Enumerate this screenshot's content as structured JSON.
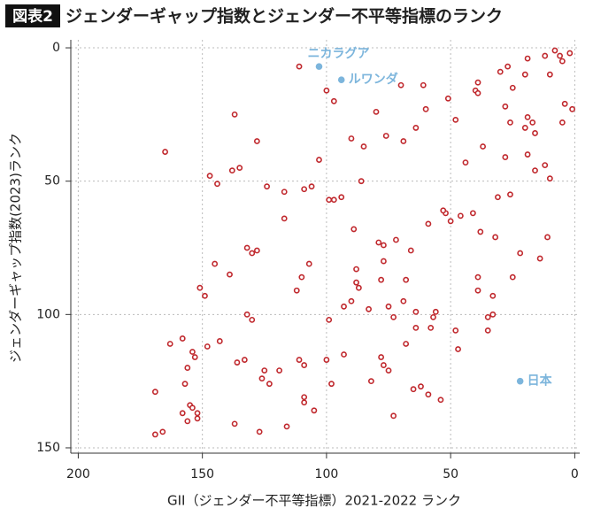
{
  "chart_data": {
    "type": "scatter",
    "figure_label": "図表2",
    "title": "ジェンダーギャップ指数とジェンダー不平等指標のランク",
    "x_label": "GII（ジェンダー不平等指標）2021-2022 ランク",
    "y_label": "ジェンダーギャップ指数(2023)ランク",
    "xlim": [
      203,
      -2
    ],
    "ylim": [
      -3,
      152
    ],
    "xticks": [
      200,
      150,
      100,
      50,
      0
    ],
    "yticks": [
      0,
      50,
      100,
      150
    ],
    "grid": true,
    "series": [
      {
        "color": "#c0282d",
        "x": [
          8,
          6,
          2,
          5,
          12,
          19,
          27,
          30,
          20,
          39,
          25,
          10,
          51,
          61,
          70,
          40,
          39,
          4,
          1,
          28,
          19,
          17,
          16,
          20,
          26,
          48,
          5,
          12,
          10,
          16,
          19,
          28,
          37,
          44,
          60,
          64,
          69,
          76,
          80,
          85,
          90,
          100,
          97,
          111,
          137,
          128,
          165,
          103,
          106,
          109,
          86,
          99,
          97,
          94,
          124,
          117,
          147,
          144,
          138,
          135,
          151,
          145,
          149,
          139,
          132,
          128,
          130,
          117,
          107,
          110,
          112,
          132,
          130,
          88,
          88,
          87,
          90,
          93,
          89,
          77,
          79,
          77,
          66,
          72,
          59,
          50,
          52,
          53,
          46,
          41,
          38,
          32,
          31,
          26,
          39,
          39,
          33,
          33,
          35,
          35,
          22,
          25,
          11,
          14,
          78,
          68,
          75,
          69,
          64,
          73,
          56,
          57,
          83,
          78,
          99,
          93,
          48,
          47,
          64,
          58,
          75,
          68,
          77,
          82,
          100,
          119,
          109,
          111,
          98,
          125,
          126,
          123,
          133,
          143,
          136,
          148,
          154,
          153,
          156,
          157,
          155,
          154,
          152,
          152,
          158,
          156,
          169,
          169,
          166,
          163,
          158,
          137,
          127,
          116,
          109,
          109,
          105,
          73,
          65,
          62,
          59,
          54
        ],
        "y": [
          1,
          3,
          2,
          5,
          3,
          4,
          7,
          9,
          10,
          13,
          15,
          10,
          19,
          14,
          14,
          16,
          17,
          21,
          23,
          22,
          26,
          28,
          32,
          30,
          28,
          27,
          28,
          44,
          49,
          46,
          40,
          41,
          37,
          43,
          23,
          30,
          35,
          33,
          24,
          37,
          34,
          16,
          20,
          7,
          25,
          35,
          39,
          42,
          52,
          53,
          50,
          57,
          57,
          56,
          52,
          54,
          48,
          51,
          46,
          45,
          90,
          81,
          93,
          85,
          75,
          76,
          77,
          64,
          81,
          86,
          91,
          100,
          102,
          83,
          88,
          90,
          95,
          97,
          68,
          74,
          73,
          80,
          76,
          72,
          66,
          65,
          62,
          61,
          63,
          62,
          69,
          71,
          56,
          55,
          91,
          86,
          93,
          100,
          106,
          101,
          77,
          86,
          71,
          79,
          87,
          87,
          97,
          95,
          99,
          101,
          99,
          101,
          98,
          116,
          102,
          115,
          106,
          113,
          105,
          105,
          121,
          111,
          119,
          125,
          117,
          121,
          119,
          117,
          126,
          121,
          124,
          126,
          117,
          110,
          118,
          112,
          114,
          116,
          120,
          126,
          134,
          135,
          137,
          139,
          137,
          140,
          129,
          145,
          144,
          111,
          109,
          141,
          144,
          142,
          131,
          133,
          136,
          138,
          128,
          127,
          130,
          132
        ]
      }
    ],
    "annotations": {
      "color": "#7cb5dc",
      "points": [
        {
          "text": "ニカラグア",
          "x": 103,
          "y": 7
        },
        {
          "text": "ルワンダ",
          "x": 94,
          "y": 12
        },
        {
          "text": "日本",
          "x": 22,
          "y": 125
        }
      ]
    }
  }
}
